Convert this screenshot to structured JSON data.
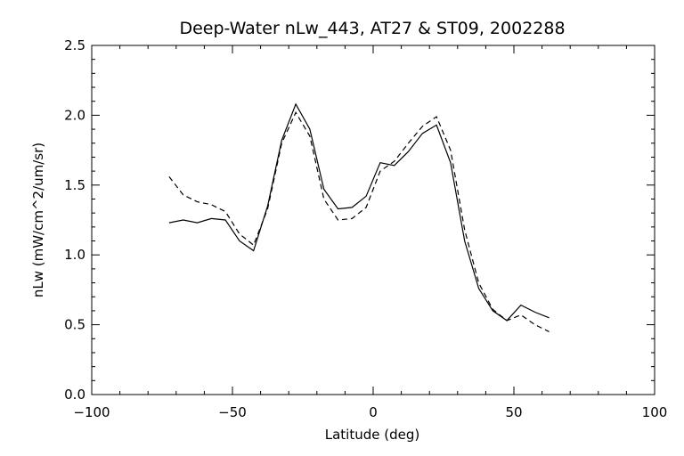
{
  "chart_data": {
    "type": "line",
    "title": "Deep-Water nLw_443, AT27 & ST09, 2002288",
    "xlabel": "Latitude (deg)",
    "ylabel": "nLw (mW/cm^2/um/sr)",
    "xlim": [
      -100,
      100
    ],
    "ylim": [
      0.0,
      2.5
    ],
    "xticks": [
      -100,
      -50,
      0,
      50,
      100
    ],
    "xtick_labels": [
      "−100",
      "−50",
      "0",
      "50",
      "100"
    ],
    "yticks": [
      0.0,
      0.5,
      1.0,
      1.5,
      2.0,
      2.5
    ],
    "ytick_labels": [
      "0.0",
      "0.5",
      "1.0",
      "1.5",
      "2.0",
      "2.5"
    ],
    "grid": false,
    "series": [
      {
        "style": "solid",
        "color": "#000000",
        "x": [
          -72.5,
          -67.5,
          -62.5,
          -57.5,
          -52.5,
          -47.5,
          -42.5,
          -37.5,
          -32.5,
          -27.5,
          -22.5,
          -17.5,
          -12.5,
          -7.5,
          -2.5,
          2.5,
          7.5,
          12.5,
          17.5,
          22.5,
          27.5,
          32.5,
          37.5,
          42.5,
          47.5,
          52.5,
          57.5,
          62.5
        ],
        "y": [
          1.23,
          1.25,
          1.23,
          1.26,
          1.25,
          1.1,
          1.03,
          1.35,
          1.82,
          2.08,
          1.9,
          1.47,
          1.33,
          1.34,
          1.42,
          1.66,
          1.64,
          1.74,
          1.87,
          1.93,
          1.66,
          1.1,
          0.76,
          0.6,
          0.53,
          0.64,
          0.59,
          0.55
        ]
      },
      {
        "style": "dashed",
        "color": "#000000",
        "x": [
          -72.5,
          -67.5,
          -62.5,
          -57.5,
          -52.5,
          -47.5,
          -42.5,
          -37.5,
          -32.5,
          -27.5,
          -22.5,
          -17.5,
          -12.5,
          -7.5,
          -2.5,
          2.5,
          7.5,
          12.5,
          17.5,
          22.5,
          27.5,
          32.5,
          37.5,
          42.5,
          47.5,
          52.5,
          57.5,
          62.5
        ],
        "y": [
          1.56,
          1.43,
          1.38,
          1.36,
          1.31,
          1.15,
          1.07,
          1.33,
          1.8,
          2.02,
          1.85,
          1.4,
          1.25,
          1.26,
          1.34,
          1.6,
          1.67,
          1.8,
          1.92,
          1.99,
          1.75,
          1.18,
          0.8,
          0.61,
          0.53,
          0.57,
          0.5,
          0.45
        ]
      }
    ]
  }
}
